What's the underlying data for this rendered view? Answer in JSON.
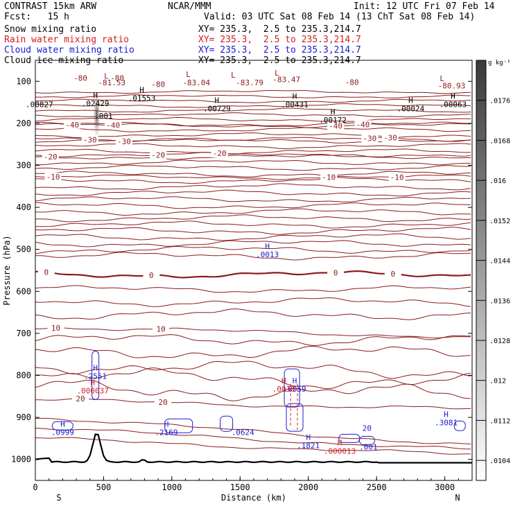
{
  "header": {
    "title": "CONTRAST 15km ARW",
    "org": "NCAR/MMM",
    "init": "Init: 12 UTC Fri 07 Feb 14",
    "fcst": "Fcst:   15 h",
    "valid": "Valid: 03 UTC Sat 08 Feb 14 (13 ChT Sat 08 Feb 14)",
    "fields": [
      {
        "name": "Snow mixing ratio",
        "xy": "XY= 235.3,  2.5 to 235.3,214.7",
        "color": "#000000"
      },
      {
        "name": "Rain water mixing ratio",
        "xy": "XY= 235.3,  2.5 to 235.3,214.7",
        "color": "#d21e1e"
      },
      {
        "name": "Cloud water mixing ratio",
        "xy": "XY= 235.3,  2.5 to 235.3,214.7",
        "color": "#1a1ad2"
      },
      {
        "name": "Cloud ice mixing ratio",
        "xy": "XY= 235.3,  2.5 to 235.3,214.7",
        "color": "#000000"
      }
    ]
  },
  "chart_data": {
    "type": "contour",
    "xlabel": "Distance (km)",
    "ylabel": "Pressure (hPa)",
    "xlim": [
      0,
      3200
    ],
    "ylim": [
      1050,
      50
    ],
    "x_ticks": [
      0,
      500,
      1000,
      1500,
      2000,
      2500,
      3000
    ],
    "y_ticks": [
      100,
      200,
      300,
      400,
      500,
      600,
      700,
      800,
      900,
      1000
    ],
    "end_labels": {
      "left": "S",
      "right": "N"
    },
    "colorbar": {
      "unit": "g kg⁻¹",
      "ticks": [
        ".0176",
        ".0168",
        ".016",
        ".0152",
        ".0144",
        ".0136",
        ".0128",
        ".012",
        ".0112",
        ".0104"
      ],
      "tick_values": [
        0.0176,
        0.0168,
        0.016,
        0.0152,
        0.0144,
        0.0136,
        0.0128,
        0.012,
        0.0112,
        0.0104
      ],
      "range": [
        0.01,
        0.0184
      ]
    },
    "temperature_contours": [
      {
        "level": -40,
        "p": 205,
        "labels_x": [
          270,
          570,
          2200,
          2400
        ]
      },
      {
        "level": -30,
        "p": 238,
        "labels_x": [
          400,
          650,
          2450,
          2600
        ]
      },
      {
        "level": -20,
        "p": 275,
        "labels_x": [
          110,
          900,
          1350
        ]
      },
      {
        "level": -10,
        "p": 328,
        "labels_x": [
          130,
          2150,
          2650
        ]
      },
      {
        "level": 0,
        "p": 560,
        "labels_x": [
          80,
          850,
          2200,
          2620
        ],
        "bold": true
      },
      {
        "level": 10,
        "p": 685,
        "labels_x": [
          150,
          920
        ]
      },
      {
        "level": 20,
        "p": 858,
        "labels_x": [
          330,
          935
        ]
      }
    ],
    "temperature_labels": [
      {
        "text": "-80",
        "x": 330,
        "p": 92
      },
      {
        "text": "-81.53",
        "x": 560,
        "p": 103
      },
      {
        "text": "-80",
        "x": 900,
        "p": 107
      },
      {
        "text": "-83.04",
        "x": 1180,
        "p": 103
      },
      {
        "text": "-83.79",
        "x": 1570,
        "p": 103
      },
      {
        "text": "-83.47",
        "x": 1840,
        "p": 95
      },
      {
        "text": "-80",
        "x": 2320,
        "p": 102
      },
      {
        "text": "-80.93",
        "x": 3050,
        "p": 110
      },
      {
        "text": "-80",
        "x": 600,
        "p": 92
      }
    ],
    "low_markers": [
      {
        "x": 520,
        "p": 87
      },
      {
        "x": 1120,
        "p": 83
      },
      {
        "x": 1450,
        "p": 85
      },
      {
        "x": 1770,
        "p": 80
      },
      {
        "x": 2980,
        "p": 93
      }
    ],
    "ice_maxima": [
      {
        "value": ".00827",
        "x": 30,
        "p": 155,
        "show_h": false
      },
      {
        "value": ".02429",
        "x": 440,
        "p": 152
      },
      {
        "value": ".01553",
        "x": 780,
        "p": 140
      },
      {
        "value": ".00729",
        "x": 1330,
        "p": 165
      },
      {
        "value": ".00431",
        "x": 1900,
        "p": 155
      },
      {
        "value": ".00024",
        "x": 2750,
        "p": 165
      },
      {
        "value": ".00063",
        "x": 3060,
        "p": 155
      },
      {
        "value": ".00172",
        "x": 2180,
        "p": 192
      },
      {
        "value": ".001",
        "x": 500,
        "p": 182,
        "show_h": false
      }
    ],
    "cloud_water_maxima": [
      {
        "value": ".0013",
        "x": 1700,
        "p": 512
      },
      {
        "value": ".2551",
        "x": 440,
        "p": 802
      },
      {
        "value": ".0999",
        "x": 200,
        "p": 935
      },
      {
        "value": ".2169",
        "x": 960,
        "p": 935
      },
      {
        "value": ".0624",
        "x": 1520,
        "p": 935,
        "show_h": false
      },
      {
        "value": ".1821",
        "x": 2000,
        "p": 967
      },
      {
        "value": ".001",
        "x": 2440,
        "p": 970,
        "show_h": false
      },
      {
        "value": ".3081",
        "x": 3010,
        "p": 912
      },
      {
        "value": ".0059",
        "x": 1900,
        "p": 832
      }
    ],
    "rain_maxima": [
      {
        "value": ".000037",
        "x": 420,
        "p": 836
      },
      {
        "value": ".0030",
        "x": 1820,
        "p": 832
      },
      {
        "value": ".000013",
        "x": 2230,
        "p": 980
      }
    ],
    "snow_maximum": {
      "value": "20",
      "x": 2430,
      "p": 925
    }
  }
}
